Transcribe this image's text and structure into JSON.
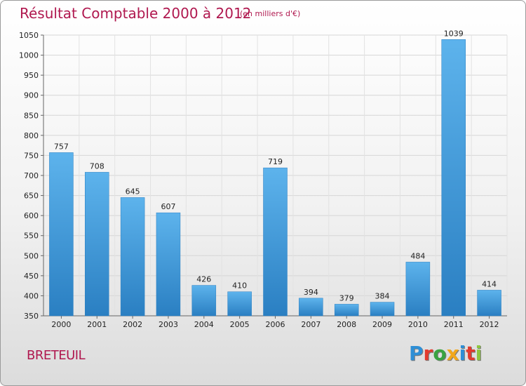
{
  "title": "Résultat Comptable 2000 à 2012",
  "subtitle": "(en milliers d'€)",
  "city": "BRETEUIL",
  "logo": {
    "letters": [
      "P",
      "r",
      "o",
      "x",
      "i",
      "t",
      "i"
    ],
    "colors": [
      "#2e8fd6",
      "#e23b2e",
      "#3aa340",
      "#f2a71b",
      "#2e8fd6",
      "#e23b2e",
      "#8dc63f"
    ]
  },
  "chart_data": {
    "type": "bar",
    "categories": [
      "2000",
      "2001",
      "2002",
      "2003",
      "2004",
      "2005",
      "2006",
      "2007",
      "2008",
      "2009",
      "2010",
      "2011",
      "2012"
    ],
    "values": [
      757,
      708,
      645,
      607,
      426,
      410,
      719,
      394,
      379,
      384,
      484,
      1039,
      414
    ],
    "title": "Résultat Comptable 2000 à 2012",
    "xlabel": "",
    "ylabel": "",
    "ylim": [
      350,
      1050
    ],
    "yticks": [
      350,
      400,
      450,
      500,
      550,
      600,
      650,
      700,
      750,
      800,
      850,
      900,
      950,
      1000,
      1050
    ],
    "grid": true,
    "bar_color": "#3d98db",
    "data_labels": true
  }
}
